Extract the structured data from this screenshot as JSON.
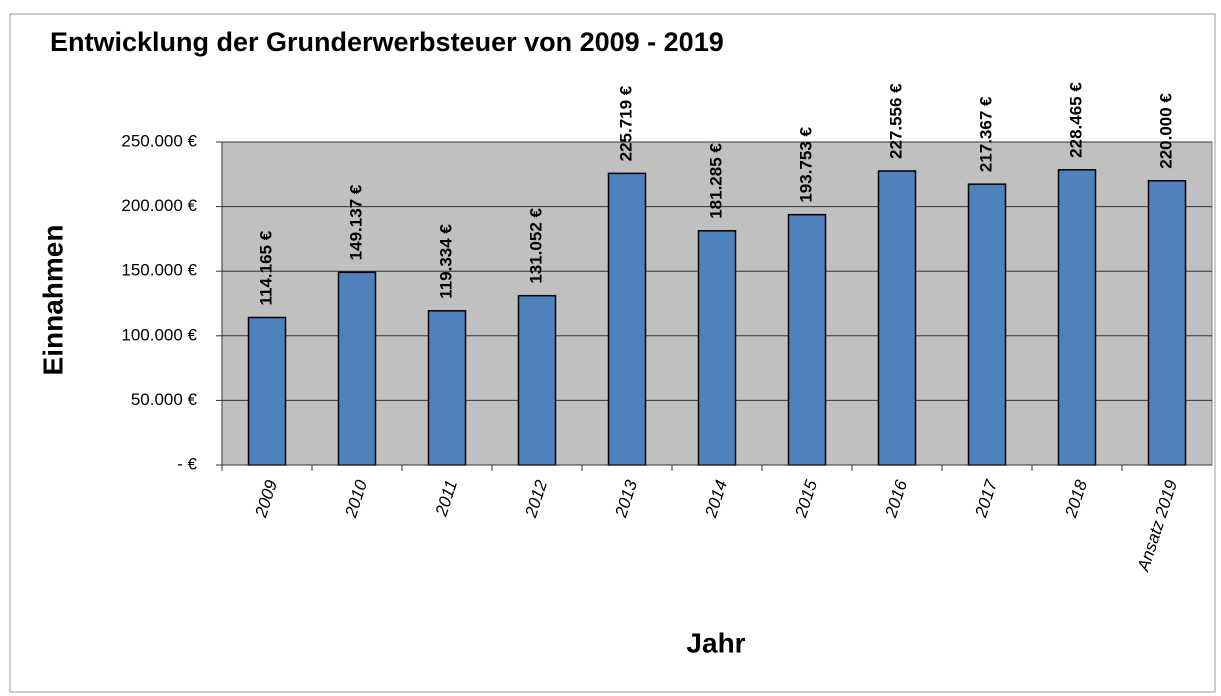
{
  "chart_data": {
    "type": "bar",
    "title": "Entwicklung der Grunderwerbsteuer von 2009 - 2019",
    "x_label": "Jahr",
    "y_label": "Einnahmen",
    "categories": [
      "2009",
      "2010",
      "2011",
      "2012",
      "2013",
      "2014",
      "2015",
      "2016",
      "2017",
      "2018",
      "Ansatz 2019"
    ],
    "values": [
      114165,
      149137,
      119334,
      131052,
      225719,
      181285,
      193753,
      227556,
      217367,
      228465,
      220000
    ],
    "value_labels": [
      "114.165 €",
      "149.137 €",
      "119.334 €",
      "131.052 €",
      "225.719 €",
      "181.285 €",
      "193.753 €",
      "227.556 €",
      "217.367 €",
      "228.465 €",
      "220.000 €"
    ],
    "color": "#4f81bd",
    "ylim": [
      0,
      250000
    ],
    "yticks": [
      {
        "value": 0,
        "label": "-  €"
      },
      {
        "value": 50000,
        "label": "50.000 €"
      },
      {
        "value": 100000,
        "label": "100.000 €"
      },
      {
        "value": 150000,
        "label": "150.000 €"
      },
      {
        "value": 200000,
        "label": "200.000 €"
      },
      {
        "value": 250000,
        "label": "250.000 €"
      }
    ],
    "grid": true
  }
}
